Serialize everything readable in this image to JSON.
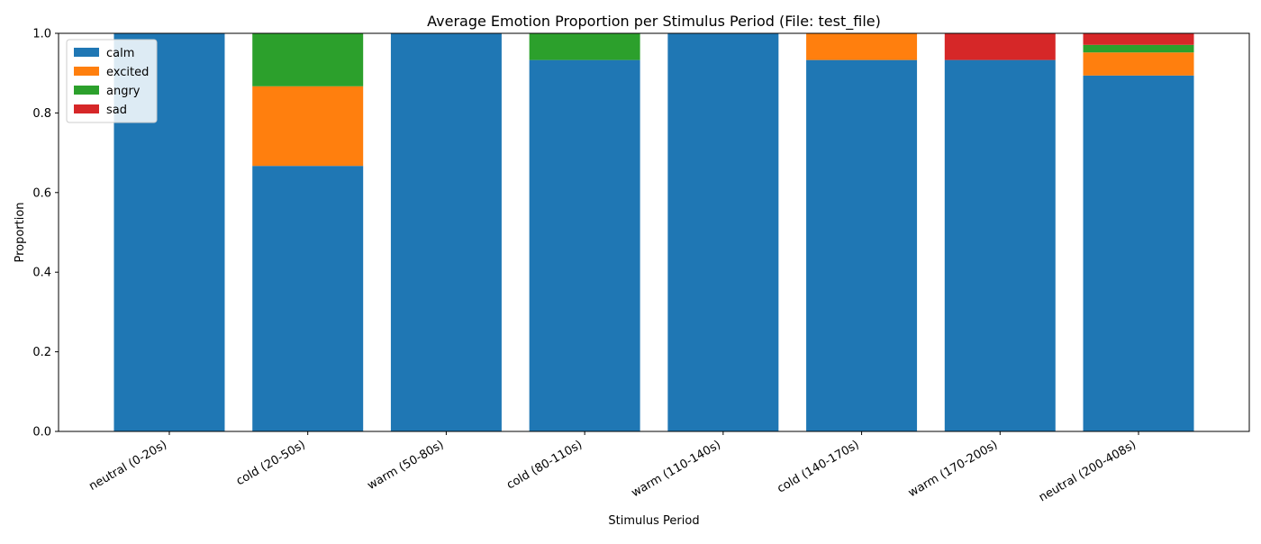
{
  "chart_data": {
    "type": "bar",
    "stacked": true,
    "title": "Average Emotion Proportion per Stimulus Period (File: test_file)",
    "xlabel": "Stimulus Period",
    "ylabel": "Proportion",
    "ylim": [
      0,
      1.0
    ],
    "yticks": [
      "0.0",
      "0.2",
      "0.4",
      "0.6",
      "0.8",
      "1.0"
    ],
    "grid": false,
    "legend_position": "upper-left",
    "categories": [
      "neutral (0-20s)",
      "cold (20-50s)",
      "warm (50-80s)",
      "cold (80-110s)",
      "warm (110-140s)",
      "cold (140-170s)",
      "warm (170-200s)",
      "neutral (200-408s)"
    ],
    "series": [
      {
        "name": "calm",
        "color": "#1f77b4",
        "values": [
          1.0,
          0.667,
          1.0,
          0.933,
          1.0,
          0.933,
          0.933,
          0.894
        ]
      },
      {
        "name": "excited",
        "color": "#ff7f0e",
        "values": [
          0.0,
          0.2,
          0.0,
          0.0,
          0.0,
          0.067,
          0.0,
          0.058
        ]
      },
      {
        "name": "angry",
        "color": "#2ca02c",
        "values": [
          0.0,
          0.133,
          0.0,
          0.067,
          0.0,
          0.0,
          0.0,
          0.019
        ]
      },
      {
        "name": "sad",
        "color": "#d62728",
        "values": [
          0.0,
          0.0,
          0.0,
          0.0,
          0.0,
          0.0,
          0.067,
          0.029
        ]
      }
    ]
  }
}
